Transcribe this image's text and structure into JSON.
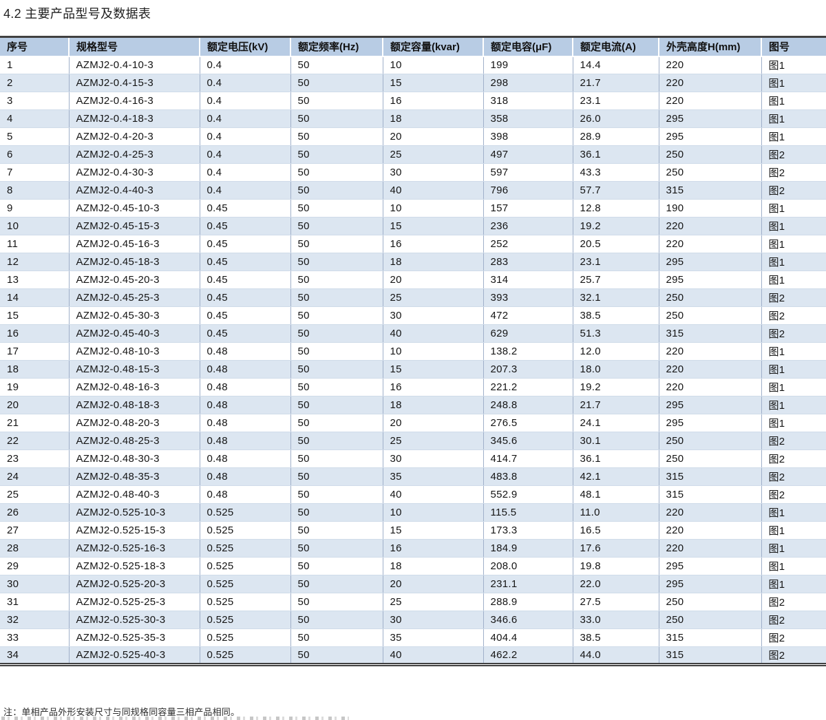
{
  "page": {
    "title": "4.2 主要产品型号及数据表",
    "note": "注：单相产品外形安装尺寸与同规格同容量三相产品相同。"
  },
  "colors": {
    "header-bg": "#b8cce4",
    "stripe": "#dce6f1",
    "border-dark": "#404040",
    "grid-line": "#9fafc9",
    "row-line": "#cfdbe9"
  },
  "table": {
    "columns": [
      "序号",
      "规格型号",
      "额定电压(kV)",
      "额定频率(Hz)",
      "额定容量(kvar)",
      "额定电容(μF)",
      "额定电流(A)",
      "外壳高度H(mm)",
      "图号"
    ],
    "rows": [
      [
        "1",
        "AZMJ2-0.4-10-3",
        "0.4",
        "50",
        "10",
        "199",
        "14.4",
        "220",
        "图1"
      ],
      [
        "2",
        "AZMJ2-0.4-15-3",
        "0.4",
        "50",
        "15",
        "298",
        "21.7",
        "220",
        "图1"
      ],
      [
        "3",
        "AZMJ2-0.4-16-3",
        "0.4",
        "50",
        "16",
        "318",
        "23.1",
        "220",
        "图1"
      ],
      [
        "4",
        "AZMJ2-0.4-18-3",
        "0.4",
        "50",
        "18",
        "358",
        "26.0",
        "295",
        "图1"
      ],
      [
        "5",
        "AZMJ2-0.4-20-3",
        "0.4",
        "50",
        "20",
        "398",
        "28.9",
        "295",
        "图1"
      ],
      [
        "6",
        "AZMJ2-0.4-25-3",
        "0.4",
        "50",
        "25",
        "497",
        "36.1",
        "250",
        "图2"
      ],
      [
        "7",
        "AZMJ2-0.4-30-3",
        "0.4",
        "50",
        "30",
        "597",
        "43.3",
        "250",
        "图2"
      ],
      [
        "8",
        "AZMJ2-0.4-40-3",
        "0.4",
        "50",
        "40",
        "796",
        "57.7",
        "315",
        "图2"
      ],
      [
        "9",
        "AZMJ2-0.45-10-3",
        "0.45",
        "50",
        "10",
        "157",
        "12.8",
        "190",
        "图1"
      ],
      [
        "10",
        "AZMJ2-0.45-15-3",
        "0.45",
        "50",
        "15",
        "236",
        "19.2",
        "220",
        "图1"
      ],
      [
        "11",
        "AZMJ2-0.45-16-3",
        "0.45",
        "50",
        "16",
        "252",
        "20.5",
        "220",
        "图1"
      ],
      [
        "12",
        "AZMJ2-0.45-18-3",
        "0.45",
        "50",
        "18",
        "283",
        "23.1",
        "295",
        "图1"
      ],
      [
        "13",
        "AZMJ2-0.45-20-3",
        "0.45",
        "50",
        "20",
        "314",
        "25.7",
        "295",
        "图1"
      ],
      [
        "14",
        "AZMJ2-0.45-25-3",
        "0.45",
        "50",
        "25",
        "393",
        "32.1",
        "250",
        "图2"
      ],
      [
        "15",
        "AZMJ2-0.45-30-3",
        "0.45",
        "50",
        "30",
        "472",
        "38.5",
        "250",
        "图2"
      ],
      [
        "16",
        "AZMJ2-0.45-40-3",
        "0.45",
        "50",
        "40",
        "629",
        "51.3",
        "315",
        "图2"
      ],
      [
        "17",
        "AZMJ2-0.48-10-3",
        "0.48",
        "50",
        "10",
        "138.2",
        "12.0",
        "220",
        "图1"
      ],
      [
        "18",
        "AZMJ2-0.48-15-3",
        "0.48",
        "50",
        "15",
        "207.3",
        "18.0",
        "220",
        "图1"
      ],
      [
        "19",
        "AZMJ2-0.48-16-3",
        "0.48",
        "50",
        "16",
        "221.2",
        "19.2",
        "220",
        "图1"
      ],
      [
        "20",
        "AZMJ2-0.48-18-3",
        "0.48",
        "50",
        "18",
        "248.8",
        "21.7",
        "295",
        "图1"
      ],
      [
        "21",
        "AZMJ2-0.48-20-3",
        "0.48",
        "50",
        "20",
        "276.5",
        "24.1",
        "295",
        "图1"
      ],
      [
        "22",
        "AZMJ2-0.48-25-3",
        "0.48",
        "50",
        "25",
        "345.6",
        "30.1",
        "250",
        "图2"
      ],
      [
        "23",
        "AZMJ2-0.48-30-3",
        "0.48",
        "50",
        "30",
        "414.7",
        "36.1",
        "250",
        "图2"
      ],
      [
        "24",
        "AZMJ2-0.48-35-3",
        "0.48",
        "50",
        "35",
        "483.8",
        "42.1",
        "315",
        "图2"
      ],
      [
        "25",
        "AZMJ2-0.48-40-3",
        "0.48",
        "50",
        "40",
        "552.9",
        "48.1",
        "315",
        "图2"
      ],
      [
        "26",
        "AZMJ2-0.525-10-3",
        "0.525",
        "50",
        "10",
        "115.5",
        "11.0",
        "220",
        "图1"
      ],
      [
        "27",
        "AZMJ2-0.525-15-3",
        "0.525",
        "50",
        "15",
        "173.3",
        "16.5",
        "220",
        "图1"
      ],
      [
        "28",
        "AZMJ2-0.525-16-3",
        "0.525",
        "50",
        "16",
        "184.9",
        "17.6",
        "220",
        "图1"
      ],
      [
        "29",
        "AZMJ2-0.525-18-3",
        "0.525",
        "50",
        "18",
        "208.0",
        "19.8",
        "295",
        "图1"
      ],
      [
        "30",
        "AZMJ2-0.525-20-3",
        "0.525",
        "50",
        "20",
        "231.1",
        "22.0",
        "295",
        "图1"
      ],
      [
        "31",
        "AZMJ2-0.525-25-3",
        "0.525",
        "50",
        "25",
        "288.9",
        "27.5",
        "250",
        "图2"
      ],
      [
        "32",
        "AZMJ2-0.525-30-3",
        "0.525",
        "50",
        "30",
        "346.6",
        "33.0",
        "250",
        "图2"
      ],
      [
        "33",
        "AZMJ2-0.525-35-3",
        "0.525",
        "50",
        "35",
        "404.4",
        "38.5",
        "315",
        "图2"
      ],
      [
        "34",
        "AZMJ2-0.525-40-3",
        "0.525",
        "50",
        "40",
        "462.2",
        "44.0",
        "315",
        "图2"
      ]
    ]
  }
}
